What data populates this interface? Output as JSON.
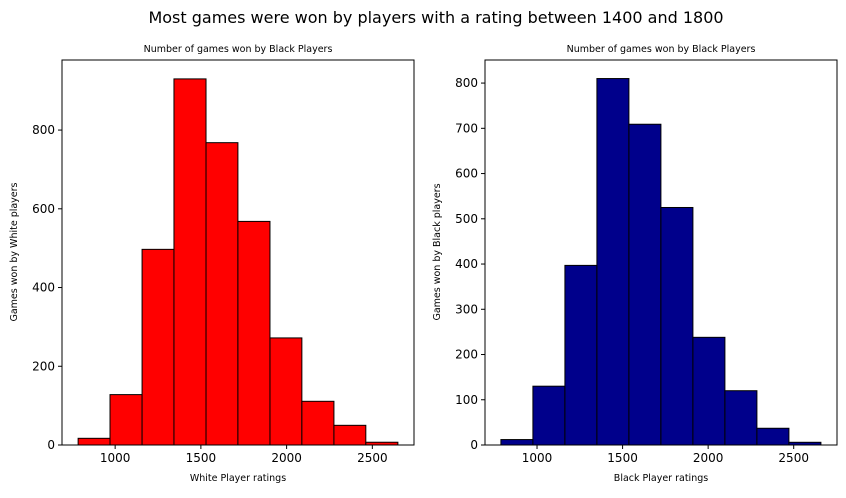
{
  "figure": {
    "suptitle": "Most games were won by players with a rating between 1400 and 1800"
  },
  "chart_data": [
    {
      "type": "bar",
      "title": "Number of games won by Black Players",
      "xlabel": "White Player ratings",
      "ylabel": "Games won by White players",
      "color": "#ff0000",
      "edgecolor": "#000000",
      "bin_edges": [
        784,
        970,
        1157,
        1343,
        1530,
        1716,
        1903,
        2089,
        2276,
        2462,
        2649
      ],
      "values": [
        17,
        128,
        497,
        930,
        768,
        568,
        272,
        111,
        50,
        7
      ],
      "xlim": [
        690,
        2743
      ],
      "ylim": [
        0,
        978
      ],
      "xticks": [
        1000,
        1500,
        2000,
        2500
      ],
      "xtick_labels": [
        "1000",
        "1500",
        "2000",
        "2500"
      ],
      "yticks": [
        0,
        200,
        400,
        600,
        800
      ],
      "ytick_labels": [
        "0",
        "200",
        "400",
        "600",
        "800"
      ]
    },
    {
      "type": "bar",
      "title": "Number of games won by Black Players",
      "xlabel": "Black Player ratings",
      "ylabel": "Games won by Black players",
      "color": "#00008b",
      "edgecolor": "#000000",
      "bin_edges": [
        789,
        976,
        1163,
        1350,
        1537,
        1724,
        1911,
        2098,
        2285,
        2472,
        2659
      ],
      "values": [
        12,
        130,
        397,
        810,
        709,
        525,
        238,
        120,
        37,
        6
      ],
      "xlim": [
        696,
        2753
      ],
      "ylim": [
        0,
        851
      ],
      "xticks": [
        1000,
        1500,
        2000,
        2500
      ],
      "xtick_labels": [
        "1000",
        "1500",
        "2000",
        "2500"
      ],
      "yticks": [
        0,
        100,
        200,
        300,
        400,
        500,
        600,
        700,
        800
      ],
      "ytick_labels": [
        "0",
        "100",
        "200",
        "300",
        "400",
        "500",
        "600",
        "700",
        "800"
      ]
    }
  ]
}
